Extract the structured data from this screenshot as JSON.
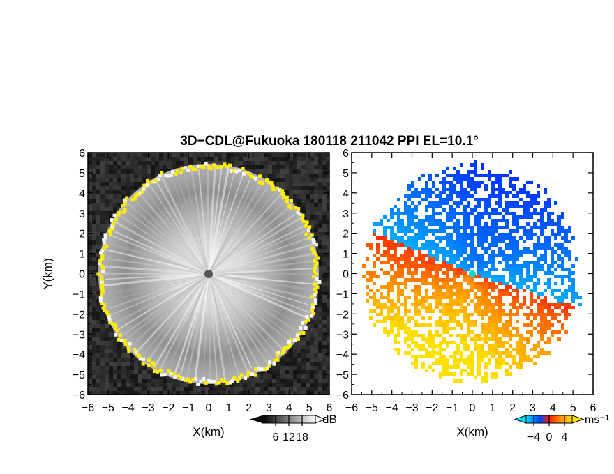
{
  "title": "3D−CDL@Fukuoka 180118 211042 PPI EL=10.1°",
  "chart_data": [
    {
      "type": "heatmap",
      "panel": "left",
      "quantity": "signal intensity",
      "xlabel": "X(km)",
      "ylabel": "Y(km)",
      "xlim": [
        -6,
        6
      ],
      "ylim": [
        -6,
        6
      ],
      "xticks": [
        "−6",
        "−5",
        "−4",
        "−3",
        "−2",
        "−1",
        "0",
        "1",
        "2",
        "3",
        "4",
        "5",
        "6"
      ],
      "yticks": [
        "6",
        "5",
        "4",
        "3",
        "2",
        "1",
        "0",
        "−1",
        "−2",
        "−3",
        "−4",
        "−5",
        "−6"
      ],
      "scan_radius_km": 5.5,
      "colormap": "grayscale with yellow at high values",
      "colorbar": {
        "unit": "dB",
        "ticks": [
          "6",
          "12",
          "18"
        ],
        "range": [
          0,
          24
        ]
      },
      "colors": {
        "background": "#2a2a2a",
        "low": "#1a1a1a",
        "high": "#ffffff",
        "edge": "#ffee00"
      }
    },
    {
      "type": "heatmap",
      "panel": "right",
      "quantity": "radial velocity",
      "xlabel": "X(km)",
      "ylabel": "",
      "xlim": [
        -6,
        6
      ],
      "ylim": [
        -6,
        6
      ],
      "xticks": [
        "−6",
        "−5",
        "−4",
        "−3",
        "−2",
        "−1",
        "0",
        "1",
        "2",
        "3",
        "4",
        "5",
        "6"
      ],
      "yticks": [
        "6",
        "5",
        "4",
        "3",
        "2",
        "1",
        "0",
        "−1",
        "−2",
        "−3",
        "−4",
        "−5",
        "−6"
      ],
      "scan_radius_km": 5.5,
      "colormap": "blue (negative) to yellow (positive)",
      "colorbar": {
        "unit": "ms⁻¹",
        "ticks": [
          "−4",
          "0",
          "4"
        ],
        "range": [
          -6,
          6
        ]
      },
      "colors": {
        "neg_strong": "#0030ff",
        "neg_weak": "#00b0ff",
        "zero": "#ff3000",
        "pos_weak": "#ff8c00",
        "pos_strong": "#ffe100"
      }
    }
  ]
}
